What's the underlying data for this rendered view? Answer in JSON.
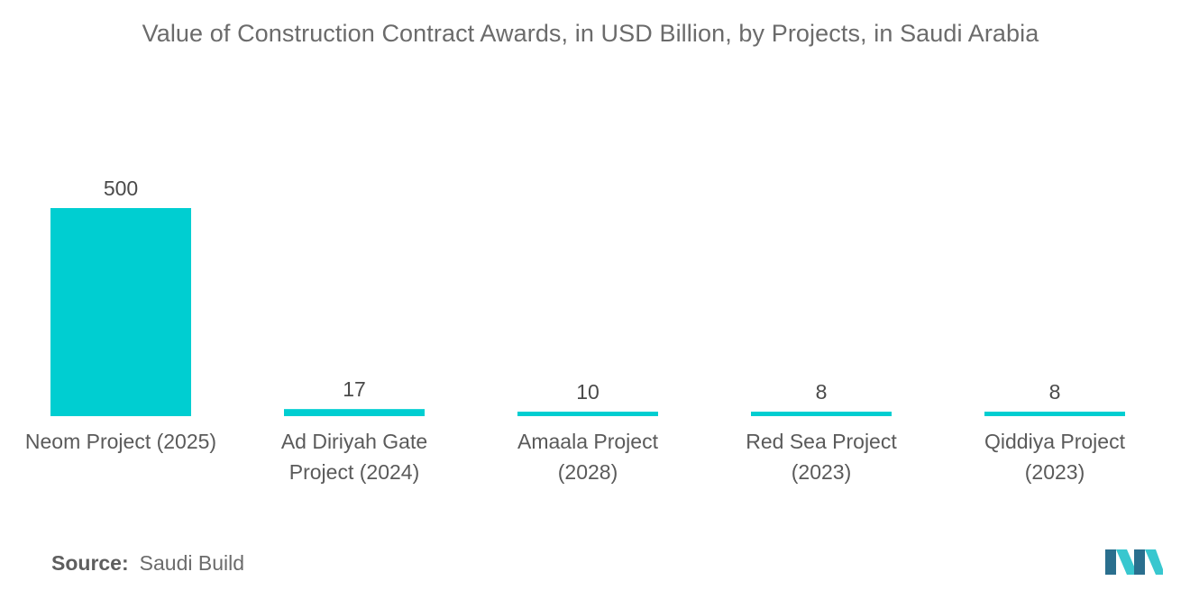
{
  "source": {
    "label": "Source:",
    "value": "Saudi Build"
  },
  "logo": {
    "name": "mordor-intelligence-logo"
  },
  "colors": {
    "bar": "#00CED1",
    "logo_dark": "#2a6f8e",
    "logo_light": "#38c7cf"
  },
  "chart_data": {
    "type": "bar",
    "title": "Value of Construction Contract Awards, in USD Billion, by Projects, in Saudi Arabia",
    "xlabel": "",
    "ylabel": "",
    "categories": [
      [
        "Neom Project (2025)"
      ],
      [
        "Ad Diriyah Gate",
        "Project (2024)"
      ],
      [
        "Amaala Project",
        "(2028)"
      ],
      [
        "Red Sea Project",
        "(2023)"
      ],
      [
        "Qiddiya Project",
        "(2023)"
      ]
    ],
    "values": [
      500,
      17,
      10,
      8,
      8
    ],
    "data_labels": [
      "500",
      "17",
      "10",
      "8",
      "8"
    ],
    "ylim": [
      0,
      500
    ],
    "grid": false,
    "legend": "none"
  }
}
